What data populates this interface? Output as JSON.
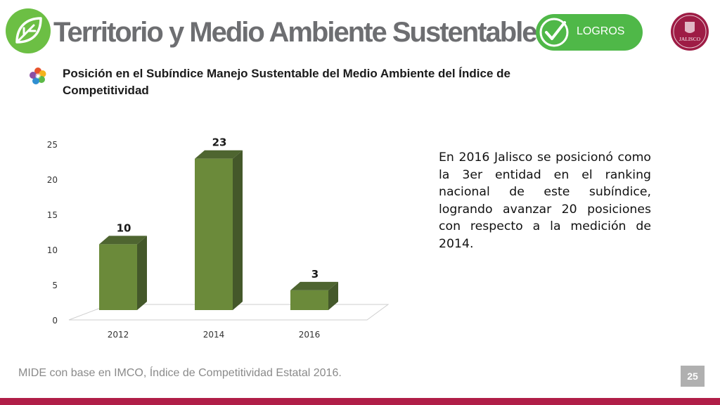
{
  "header": {
    "title": "Territorio y Medio Ambiente Sustentable",
    "badge_label": "LOGROS",
    "logo_icon": "leaf-icon",
    "badge_icon": "check-icon",
    "seal_text": "JALISCO",
    "seal_icon": "jalisco-seal-icon"
  },
  "subtitle": "Posición en el Subíndice Manejo Sustentable del Medio Ambiente del Índice de Competitividad",
  "description": "En 2016 Jalisco se posicionó como la 3er entidad en el ranking nacional de este subíndice, logrando avanzar 20 posiciones con respecto a la medición de 2014.",
  "source": "MIDE con base en IMCO, Índice de Competitividad Estatal 2016.",
  "page_number": "25",
  "colors": {
    "title": "#6d6e71",
    "badge": "#4fb848",
    "bar_front": "#6b8a3a",
    "bar_side": "#44582a",
    "bar_top": "#4e6530",
    "footer": "#b01e48"
  },
  "chart_data": {
    "type": "bar",
    "categories": [
      "2012",
      "2014",
      "2016"
    ],
    "values": [
      10,
      23,
      3
    ],
    "data_labels": [
      "10",
      "23",
      "3"
    ],
    "title": "",
    "xlabel": "",
    "ylabel": "",
    "ylim": [
      0,
      25
    ],
    "yticks": [
      "0",
      "5",
      "10",
      "15",
      "20",
      "25"
    ],
    "grid": false,
    "legend": "none",
    "style": "3d"
  }
}
